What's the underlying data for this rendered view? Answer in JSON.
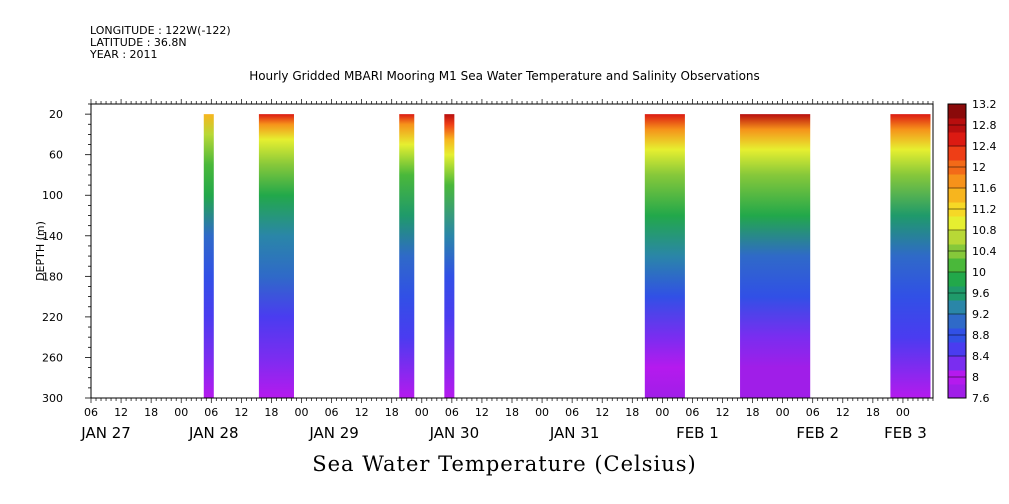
{
  "header": {
    "longitude": "LONGITUDE : 122W(-122)",
    "latitude": "LATITUDE : 36.8N",
    "year": "YEAR : 2011"
  },
  "title": "Hourly Gridded MBARI Mooring M1 Sea Water Temperature and Salinity Observations",
  "bottom_title": "Sea Water Temperature (Celsius)",
  "chart_data": {
    "type": "heatmap",
    "title": "Hourly Gridded MBARI Mooring M1 Sea Water Temperature and Salinity Observations",
    "ylabel": "DEPTH (m)",
    "xlabel": "",
    "colorbar_label": "Sea Water Temperature (Celsius)",
    "ylim": [
      300,
      10
    ],
    "y_ticks": [
      20,
      60,
      100,
      140,
      180,
      220,
      260,
      300
    ],
    "x_range_hours": [
      0,
      168
    ],
    "x_hour_ticks": [
      {
        "h": 0,
        "label": "06"
      },
      {
        "h": 6,
        "label": "12"
      },
      {
        "h": 12,
        "label": "18"
      },
      {
        "h": 18,
        "label": "00"
      },
      {
        "h": 24,
        "label": "06"
      },
      {
        "h": 30,
        "label": "12"
      },
      {
        "h": 36,
        "label": "18"
      },
      {
        "h": 42,
        "label": "00"
      },
      {
        "h": 48,
        "label": "06"
      },
      {
        "h": 54,
        "label": "12"
      },
      {
        "h": 60,
        "label": "18"
      },
      {
        "h": 66,
        "label": "00"
      },
      {
        "h": 72,
        "label": "06"
      },
      {
        "h": 78,
        "label": "12"
      },
      {
        "h": 84,
        "label": "18"
      },
      {
        "h": 90,
        "label": "00"
      },
      {
        "h": 96,
        "label": "06"
      },
      {
        "h": 102,
        "label": "12"
      },
      {
        "h": 108,
        "label": "18"
      },
      {
        "h": 114,
        "label": "00"
      },
      {
        "h": 120,
        "label": "06"
      },
      {
        "h": 126,
        "label": "12"
      },
      {
        "h": 132,
        "label": "18"
      },
      {
        "h": 138,
        "label": "00"
      },
      {
        "h": 144,
        "label": "06"
      },
      {
        "h": 150,
        "label": "12"
      },
      {
        "h": 156,
        "label": "18"
      },
      {
        "h": 162,
        "label": "00"
      }
    ],
    "date_labels": [
      {
        "h": 3,
        "label": "JAN 27"
      },
      {
        "h": 24.5,
        "label": "JAN 28"
      },
      {
        "h": 48.5,
        "label": "JAN 29"
      },
      {
        "h": 72.5,
        "label": "JAN 30"
      },
      {
        "h": 96.5,
        "label": "JAN 31"
      },
      {
        "h": 121,
        "label": "FEB 1"
      },
      {
        "h": 145,
        "label": "FEB 2"
      },
      {
        "h": 162.5,
        "label": "FEB 3"
      }
    ],
    "colorbar_levels": [
      "7.6",
      "8",
      "8.4",
      "8.8",
      "9.2",
      "9.6",
      "10",
      "10.4",
      "10.8",
      "11.2",
      "11.6",
      "12",
      "12.4",
      "12.8",
      "13.2"
    ],
    "colorbar_colors": [
      "#a01ee8",
      "#b51aee",
      "#7a2df0",
      "#4a3cf0",
      "#3150e6",
      "#2f6ac8",
      "#2a86a8",
      "#1f9a6a",
      "#22a84a",
      "#4ab83a",
      "#86c83a",
      "#b8d836",
      "#e6ef30",
      "#f6d826",
      "#f7b51e",
      "#f6921a",
      "#f36a18",
      "#ee3e16",
      "#dc1a12",
      "#b80e0e",
      "#8a0a0a"
    ],
    "data_blocks": [
      {
        "start_h": 22.5,
        "end_h": 24.5,
        "profile": [
          {
            "depth": 20,
            "value": 11.4
          },
          {
            "depth": 40,
            "value": 10.6
          },
          {
            "depth": 70,
            "value": 10.0
          },
          {
            "depth": 100,
            "value": 9.8
          },
          {
            "depth": 140,
            "value": 9.2
          },
          {
            "depth": 180,
            "value": 8.9
          },
          {
            "depth": 220,
            "value": 8.6
          },
          {
            "depth": 260,
            "value": 8.3
          },
          {
            "depth": 300,
            "value": 8.1
          }
        ]
      },
      {
        "start_h": 33.5,
        "end_h": 40.5,
        "profile": [
          {
            "depth": 20,
            "value": 12.6
          },
          {
            "depth": 30,
            "value": 11.8
          },
          {
            "depth": 45,
            "value": 11.0
          },
          {
            "depth": 70,
            "value": 10.3
          },
          {
            "depth": 100,
            "value": 9.9
          },
          {
            "depth": 140,
            "value": 9.4
          },
          {
            "depth": 180,
            "value": 8.95
          },
          {
            "depth": 220,
            "value": 8.55
          },
          {
            "depth": 260,
            "value": 8.2
          },
          {
            "depth": 300,
            "value": 7.9
          }
        ]
      },
      {
        "start_h": 61.5,
        "end_h": 64.5,
        "profile": [
          {
            "depth": 20,
            "value": 12.6
          },
          {
            "depth": 30,
            "value": 11.8
          },
          {
            "depth": 50,
            "value": 10.8
          },
          {
            "depth": 80,
            "value": 10.2
          },
          {
            "depth": 120,
            "value": 9.7
          },
          {
            "depth": 160,
            "value": 9.2
          },
          {
            "depth": 200,
            "value": 8.8
          },
          {
            "depth": 240,
            "value": 8.4
          },
          {
            "depth": 300,
            "value": 8.0
          }
        ]
      },
      {
        "start_h": 70.5,
        "end_h": 72.5,
        "profile": [
          {
            "depth": 20,
            "value": 12.8
          },
          {
            "depth": 30,
            "value": 12.2
          },
          {
            "depth": 45,
            "value": 11.4
          },
          {
            "depth": 60,
            "value": 10.9
          },
          {
            "depth": 90,
            "value": 10.2
          },
          {
            "depth": 140,
            "value": 9.3
          },
          {
            "depth": 180,
            "value": 8.9
          },
          {
            "depth": 220,
            "value": 8.5
          },
          {
            "depth": 300,
            "value": 8.1
          }
        ]
      },
      {
        "start_h": 110.5,
        "end_h": 118.5,
        "profile": [
          {
            "depth": 20,
            "value": 12.6
          },
          {
            "depth": 35,
            "value": 11.6
          },
          {
            "depth": 55,
            "value": 10.9
          },
          {
            "depth": 80,
            "value": 10.4
          },
          {
            "depth": 120,
            "value": 9.9
          },
          {
            "depth": 160,
            "value": 9.3
          },
          {
            "depth": 200,
            "value": 8.8
          },
          {
            "depth": 240,
            "value": 8.3
          },
          {
            "depth": 270,
            "value": 7.9
          },
          {
            "depth": 300,
            "value": 7.7
          }
        ]
      },
      {
        "start_h": 129.5,
        "end_h": 143.5,
        "profile": [
          {
            "depth": 20,
            "value": 12.8
          },
          {
            "depth": 35,
            "value": 11.8
          },
          {
            "depth": 55,
            "value": 11.0
          },
          {
            "depth": 80,
            "value": 10.4
          },
          {
            "depth": 120,
            "value": 9.8
          },
          {
            "depth": 160,
            "value": 9.2
          },
          {
            "depth": 200,
            "value": 8.7
          },
          {
            "depth": 240,
            "value": 8.2
          },
          {
            "depth": 270,
            "value": 7.85
          },
          {
            "depth": 300,
            "value": 7.7
          }
        ]
      },
      {
        "start_h": 159.5,
        "end_h": 167.5,
        "profile": [
          {
            "depth": 20,
            "value": 12.4
          },
          {
            "depth": 35,
            "value": 11.6
          },
          {
            "depth": 55,
            "value": 10.9
          },
          {
            "depth": 80,
            "value": 10.3
          },
          {
            "depth": 120,
            "value": 9.6
          },
          {
            "depth": 160,
            "value": 9.2
          },
          {
            "depth": 200,
            "value": 8.8
          },
          {
            "depth": 240,
            "value": 8.4
          },
          {
            "depth": 300,
            "value": 8.0
          }
        ]
      }
    ]
  }
}
